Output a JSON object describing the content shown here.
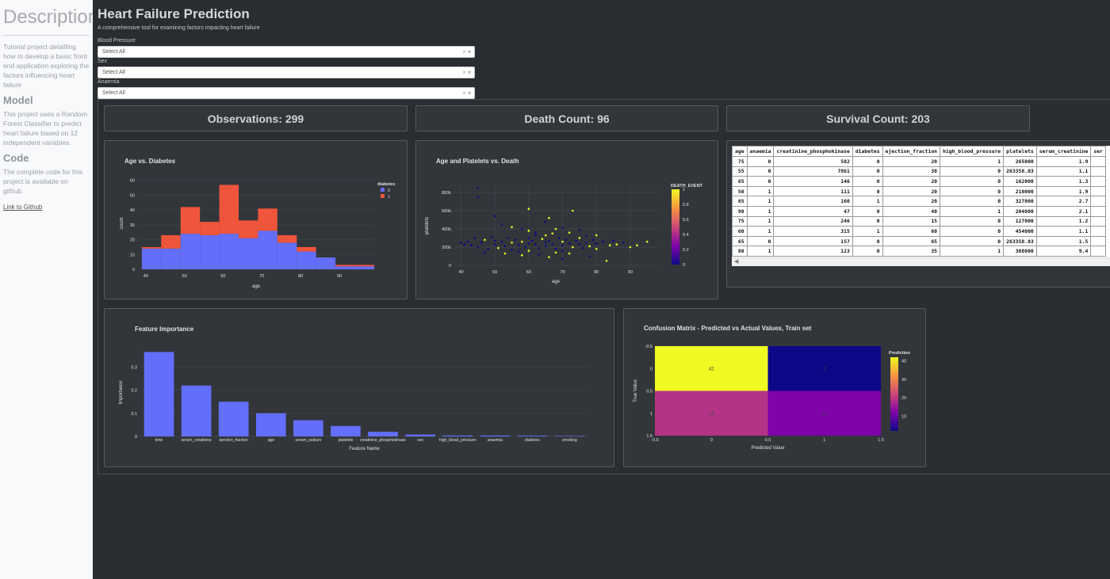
{
  "sidebar": {
    "title": "Description",
    "description": "Tutorial project detailling how to develop a basic front end application exploring the factors influencing heart failure",
    "model_heading": "Model",
    "model_text": "This project uses a Random Forest Classifier to predict heart failure based on 12 independent variables.",
    "code_heading": "Code",
    "code_text": "The complete code for this project is available on github.",
    "github_link": "Link to Github"
  },
  "header": {
    "title": "Heart Failure Prediction",
    "subtitle": "A comprehensive tool for examining factors impacting heart failure"
  },
  "filters": [
    {
      "label": "Blood Pressure",
      "value": "Select All"
    },
    {
      "label": "Sex",
      "value": "Select All"
    },
    {
      "label": "Anaemia",
      "value": "Select All"
    }
  ],
  "kpis": {
    "observations": "Observations: 299",
    "deaths": "Death Count: 96",
    "survival": "Survival Count: 203"
  },
  "colors": {
    "blue": "#636efa",
    "red": "#ef553b",
    "yellow": "#f0f921",
    "navy": "#0d0887"
  },
  "table": {
    "columns": [
      "age",
      "anaemia",
      "creatinine_phosphokinase",
      "diabetes",
      "ejection_fraction",
      "high_blood_pressure",
      "platelets",
      "serum_creatinine",
      "ser"
    ],
    "rows": [
      [
        "75",
        "0",
        "582",
        "0",
        "20",
        "1",
        "265000",
        "1.9",
        ""
      ],
      [
        "55",
        "0",
        "7861",
        "0",
        "38",
        "0",
        "263358.03",
        "1.1",
        ""
      ],
      [
        "65",
        "0",
        "146",
        "0",
        "20",
        "0",
        "162000",
        "1.3",
        ""
      ],
      [
        "50",
        "1",
        "111",
        "0",
        "20",
        "0",
        "210000",
        "1.9",
        ""
      ],
      [
        "65",
        "1",
        "160",
        "1",
        "20",
        "0",
        "327000",
        "2.7",
        ""
      ],
      [
        "90",
        "1",
        "47",
        "0",
        "40",
        "1",
        "204000",
        "2.1",
        ""
      ],
      [
        "75",
        "1",
        "246",
        "0",
        "15",
        "0",
        "127000",
        "1.2",
        ""
      ],
      [
        "60",
        "1",
        "315",
        "1",
        "60",
        "0",
        "454000",
        "1.1",
        ""
      ],
      [
        "65",
        "0",
        "157",
        "0",
        "65",
        "0",
        "263358.03",
        "1.5",
        ""
      ],
      [
        "80",
        "1",
        "123",
        "0",
        "35",
        "1",
        "388000",
        "9.4",
        ""
      ]
    ],
    "scroll_left": "◀"
  },
  "chart_data": [
    {
      "type": "bar",
      "title": "Age vs. Diabetes",
      "xlabel": "age",
      "ylabel": "count",
      "x_ticks": [
        "40",
        "50",
        "60",
        "70",
        "80",
        "90"
      ],
      "y_ticks": [
        "0",
        "10",
        "20",
        "30",
        "40",
        "50",
        "60"
      ],
      "bin_start": 39,
      "bin_width": 5,
      "ylim": [
        0,
        62
      ],
      "xlim": [
        38,
        99
      ],
      "stacked": true,
      "legend_title": "diabetes",
      "series": [
        {
          "name": "0",
          "values": [
            14,
            14,
            24,
            23,
            24,
            21,
            26,
            18,
            12,
            8,
            2,
            2
          ]
        },
        {
          "name": "1",
          "values": [
            1,
            9,
            18,
            9,
            33,
            12,
            15,
            5,
            3,
            0,
            1,
            1
          ]
        }
      ]
    },
    {
      "type": "scatter",
      "title": "Age and Platelets vs. Death",
      "xlabel": "age",
      "ylabel": "platelets",
      "x_ticks": [
        "40",
        "50",
        "60",
        "70",
        "80",
        "90"
      ],
      "y_ticks": [
        "0",
        "200k",
        "400k",
        "600k",
        "800k"
      ],
      "xlim": [
        38,
        98
      ],
      "ylim": [
        0,
        870000
      ],
      "colorbar_title": "DEATH_EVENT",
      "colorbar_ticks": [
        "0",
        "0.2",
        "0.4",
        "0.6",
        "0.8",
        "1"
      ],
      "points": [
        [
          45,
          850000,
          0
        ],
        [
          45,
          750000,
          0
        ],
        [
          50,
          540000,
          0
        ],
        [
          52,
          450000,
          0
        ],
        [
          55,
          420000,
          1
        ],
        [
          58,
          400000,
          0
        ],
        [
          60,
          380000,
          1
        ],
        [
          62,
          360000,
          0
        ],
        [
          65,
          480000,
          0
        ],
        [
          68,
          400000,
          1
        ],
        [
          70,
          410000,
          0
        ],
        [
          72,
          360000,
          1
        ],
        [
          75,
          390000,
          0
        ],
        [
          80,
          330000,
          1
        ],
        [
          42,
          260000,
          0
        ],
        [
          43,
          220000,
          0
        ],
        [
          44,
          300000,
          0
        ],
        [
          45,
          200000,
          0
        ],
        [
          46,
          250000,
          0
        ],
        [
          47,
          280000,
          1
        ],
        [
          48,
          180000,
          0
        ],
        [
          49,
          310000,
          0
        ],
        [
          50,
          270000,
          0
        ],
        [
          50,
          230000,
          0
        ],
        [
          51,
          190000,
          1
        ],
        [
          52,
          260000,
          0
        ],
        [
          53,
          210000,
          0
        ],
        [
          54,
          300000,
          0
        ],
        [
          55,
          250000,
          1
        ],
        [
          55,
          170000,
          0
        ],
        [
          56,
          280000,
          0
        ],
        [
          57,
          220000,
          0
        ],
        [
          58,
          260000,
          1
        ],
        [
          59,
          200000,
          0
        ],
        [
          60,
          240000,
          0
        ],
        [
          60,
          300000,
          0
        ],
        [
          60,
          160000,
          1
        ],
        [
          61,
          270000,
          0
        ],
        [
          62,
          230000,
          0
        ],
        [
          63,
          190000,
          0
        ],
        [
          64,
          290000,
          1
        ],
        [
          65,
          250000,
          0
        ],
        [
          65,
          210000,
          0
        ],
        [
          65,
          330000,
          1
        ],
        [
          66,
          270000,
          0
        ],
        [
          67,
          230000,
          0
        ],
        [
          68,
          180000,
          0
        ],
        [
          69,
          300000,
          0
        ],
        [
          70,
          260000,
          1
        ],
        [
          70,
          220000,
          0
        ],
        [
          70,
          160000,
          0
        ],
        [
          71,
          280000,
          0
        ],
        [
          72,
          240000,
          0
        ],
        [
          73,
          200000,
          1
        ],
        [
          74,
          270000,
          0
        ],
        [
          75,
          230000,
          0
        ],
        [
          75,
          300000,
          1
        ],
        [
          76,
          190000,
          0
        ],
        [
          77,
          250000,
          0
        ],
        [
          78,
          210000,
          1
        ],
        [
          79,
          280000,
          0
        ],
        [
          80,
          240000,
          0
        ],
        [
          80,
          180000,
          1
        ],
        [
          82,
          260000,
          0
        ],
        [
          84,
          220000,
          1
        ],
        [
          85,
          270000,
          0
        ],
        [
          86,
          230000,
          1
        ],
        [
          88,
          250000,
          0
        ],
        [
          90,
          200000,
          1
        ],
        [
          95,
          260000,
          1
        ],
        [
          92,
          220000,
          1
        ],
        [
          40,
          250000,
          0
        ],
        [
          41,
          230000,
          0
        ],
        [
          53,
          130000,
          1
        ],
        [
          58,
          110000,
          1
        ],
        [
          63,
          120000,
          0
        ],
        [
          66,
          90000,
          1
        ],
        [
          70,
          70000,
          0
        ],
        [
          72,
          130000,
          1
        ],
        [
          78,
          100000,
          0
        ],
        [
          83,
          50000,
          1
        ],
        [
          60,
          620000,
          1
        ],
        [
          66,
          520000,
          1
        ],
        [
          73,
          600000,
          1
        ],
        [
          62,
          330000,
          0
        ],
        [
          67,
          350000,
          1
        ],
        [
          77,
          320000,
          0
        ],
        [
          47,
          140000,
          0
        ],
        [
          57,
          150000,
          0
        ],
        [
          68,
          140000,
          1
        ]
      ]
    },
    {
      "type": "bar",
      "title": "Feature Importance",
      "xlabel": "Feature Name",
      "ylabel": "Importance",
      "y_ticks": [
        "0",
        "0.1",
        "0.2",
        "0.3"
      ],
      "ylim": [
        0,
        0.38
      ],
      "categories": [
        "time",
        "serum_creatinine",
        "ejection_fraction",
        "age",
        "serum_sodium",
        "platelets",
        "creatinine_phosphokinase",
        "sex",
        "high_blood_pressure",
        "anaemia",
        "diabetes",
        "smoking"
      ],
      "values": [
        0.365,
        0.22,
        0.15,
        0.1,
        0.07,
        0.045,
        0.02,
        0.008,
        0.004,
        0.004,
        0.003,
        0.002
      ]
    },
    {
      "type": "heatmap",
      "title": "Confusion Matrix - Predicted vs Actual Values, Train set",
      "xlabel": "Predicted Value",
      "ylabel": "True Value",
      "x_ticks": [
        "-0.5",
        "0",
        "0.5",
        "1",
        "1.5"
      ],
      "y_ticks": [
        "-0.5",
        "0",
        "0.5",
        "1",
        "1.5"
      ],
      "colorbar_title": "Prediction",
      "colorbar_ticks": [
        "10",
        "20",
        "30",
        "40"
      ],
      "z": [
        [
          42,
          2
        ],
        [
          19,
          12
        ]
      ],
      "cell_labels": [
        [
          "42",
          "2"
        ],
        [
          "19",
          "12"
        ]
      ]
    }
  ]
}
